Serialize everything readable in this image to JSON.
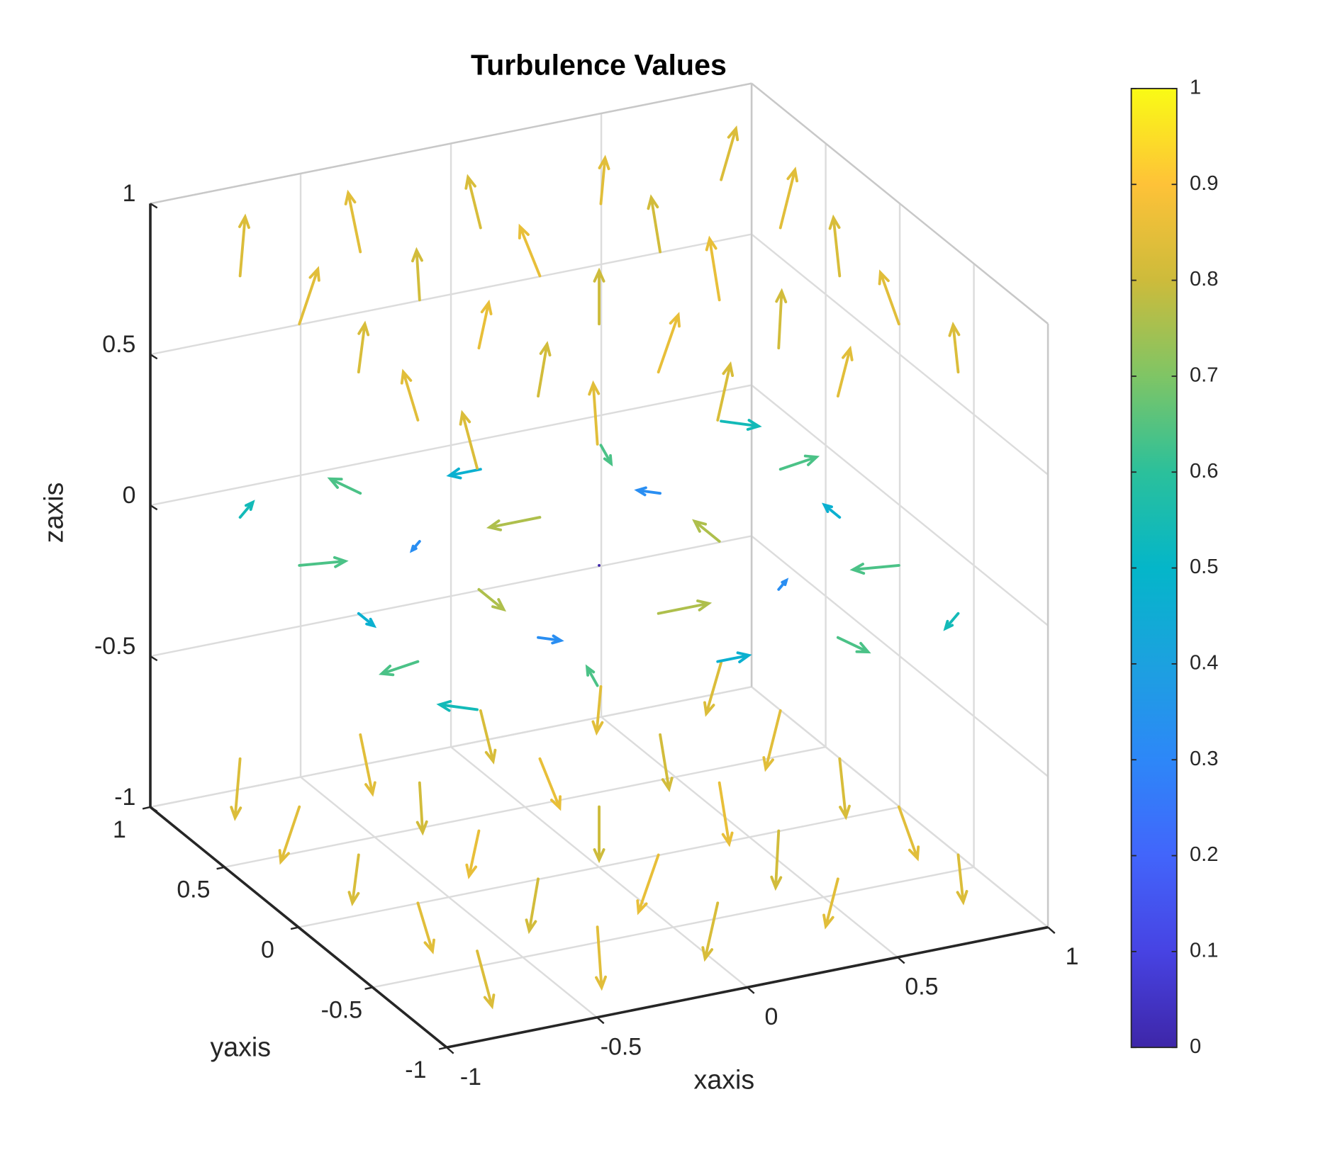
{
  "chart_data": {
    "type": "quiver3",
    "title": "Turbulence Values",
    "xlabel": "xaxis",
    "ylabel": "yaxis",
    "zlabel": "zaxis",
    "xlim": [
      -1,
      1
    ],
    "ylim": [
      -1,
      1
    ],
    "zlim": [
      -1,
      1
    ],
    "xticks": [
      -1,
      -0.5,
      0,
      0.5,
      1
    ],
    "yticks": [
      -1,
      -0.5,
      0,
      0.5,
      1
    ],
    "zticks": [
      -1,
      -0.5,
      0,
      0.5,
      1
    ],
    "grid": true,
    "clim": [
      0,
      1
    ],
    "cticks": [
      0,
      0.1,
      0.2,
      0.3,
      0.4,
      0.5,
      0.6,
      0.7,
      0.8,
      0.9,
      1
    ],
    "colormap": [
      "#3e26a8",
      "#4743e3",
      "#4265fb",
      "#2d87f8",
      "#1ca1df",
      "#04b6c9",
      "#2bc09b",
      "#7fc565",
      "#cdbb3b",
      "#fec238",
      "#f9fb15"
    ],
    "x": [
      -0.8,
      -0.8,
      -0.8,
      -0.8,
      -0.8,
      -0.4,
      -0.4,
      -0.4,
      -0.4,
      -0.4,
      0,
      0,
      0,
      0,
      0,
      0.4,
      0.4,
      0.4,
      0.4,
      0.4,
      0.8,
      0.8,
      0.8,
      0.8,
      0.8,
      -0.8,
      -0.8,
      -0.8,
      -0.8,
      -0.8,
      -0.4,
      -0.4,
      -0.4,
      -0.4,
      -0.4,
      0,
      0,
      0,
      0,
      0,
      0.4,
      0.4,
      0.4,
      0.4,
      0.4,
      0.8,
      0.8,
      0.8,
      0.8,
      0.8,
      -0.8,
      -0.8,
      -0.8,
      -0.8,
      -0.8,
      -0.4,
      -0.4,
      -0.4,
      -0.4,
      -0.4,
      0,
      0,
      0,
      0,
      0,
      0.4,
      0.4,
      0.4,
      0.4,
      0.4,
      0.8,
      0.8,
      0.8,
      0.8,
      0.8
    ],
    "y": [
      -0.8,
      -0.4,
      0,
      0.4,
      0.8,
      -0.8,
      -0.4,
      0,
      0.4,
      0.8,
      -0.8,
      -0.4,
      0,
      0.4,
      0.8,
      -0.8,
      -0.4,
      0,
      0.4,
      0.8,
      -0.8,
      -0.4,
      0,
      0.4,
      0.8,
      -0.8,
      -0.4,
      0,
      0.4,
      0.8,
      -0.8,
      -0.4,
      0,
      0.4,
      0.8,
      -0.8,
      -0.4,
      0,
      0.4,
      0.8,
      -0.8,
      -0.4,
      0,
      0.4,
      0.8,
      -0.8,
      -0.4,
      0,
      0.4,
      0.8,
      -0.8,
      -0.4,
      0,
      0.4,
      0.8,
      -0.8,
      -0.4,
      0,
      0.4,
      0.8,
      -0.8,
      -0.4,
      0,
      0.4,
      0.8,
      -0.8,
      -0.4,
      0,
      0.4,
      0.8,
      -0.8,
      -0.4,
      0,
      0.4,
      0.8
    ],
    "z": [
      -0.8,
      -0.8,
      -0.8,
      -0.8,
      -0.8,
      -0.8,
      -0.8,
      -0.8,
      -0.8,
      -0.8,
      -0.8,
      -0.8,
      -0.8,
      -0.8,
      -0.8,
      -0.8,
      -0.8,
      -0.8,
      -0.8,
      -0.8,
      -0.8,
      -0.8,
      -0.8,
      -0.8,
      -0.8,
      0,
      0,
      0,
      0,
      0,
      0,
      0,
      0,
      0,
      0,
      0,
      0,
      0,
      0,
      0,
      0,
      0,
      0,
      0,
      0,
      0,
      0,
      0,
      0,
      0,
      0.8,
      0.8,
      0.8,
      0.8,
      0.8,
      0.8,
      0.8,
      0.8,
      0.8,
      0.8,
      0.8,
      0.8,
      0.8,
      0.8,
      0.8,
      0.8,
      0.8,
      0.8,
      0.8,
      0.8,
      0.8,
      0.8,
      0.8,
      0.8,
      0.8
    ],
    "u": [
      0.15,
      0.25,
      0,
      -0.25,
      -0.15,
      -0.06,
      -0.09,
      0,
      0.09,
      0.06,
      -0.19,
      -0.3,
      0,
      0.3,
      0.19,
      -0.06,
      -0.09,
      0,
      0.09,
      0.06,
      0.15,
      0.25,
      0,
      -0.25,
      -0.15,
      -0.38,
      -0.62,
      0,
      0.62,
      0.38,
      0.15,
      0.23,
      0,
      -0.23,
      -0.15,
      0.47,
      0.76,
      0,
      -0.76,
      -0.47,
      0.15,
      0.23,
      0,
      -0.23,
      -0.15,
      -0.38,
      -0.62,
      0,
      0.62,
      0.38,
      -0.15,
      -0.25,
      0,
      0.25,
      0.15,
      0.06,
      0.09,
      0,
      -0.09,
      -0.06,
      0.19,
      0.3,
      0,
      -0.3,
      -0.19,
      0.06,
      0.09,
      0,
      -0.09,
      -0.06,
      -0.15,
      -0.25,
      0,
      0.25,
      0.15
    ],
    "v": [
      -0.15,
      0.06,
      0.19,
      0.06,
      -0.15,
      -0.25,
      0.09,
      0.3,
      0.09,
      -0.25,
      0,
      0,
      0,
      0,
      0,
      0.25,
      -0.09,
      -0.3,
      -0.09,
      0.25,
      0.15,
      -0.06,
      -0.19,
      -0.06,
      0.15,
      0.38,
      -0.15,
      -0.47,
      -0.15,
      0.38,
      0.62,
      -0.23,
      -0.76,
      -0.23,
      0.62,
      0,
      0,
      0,
      0,
      0,
      -0.62,
      0.23,
      0.76,
      0.23,
      -0.62,
      -0.38,
      0.15,
      0.47,
      0.15,
      -0.38,
      0.15,
      -0.06,
      -0.19,
      -0.06,
      0.15,
      0.25,
      -0.09,
      -0.3,
      -0.09,
      0.25,
      0,
      0,
      0,
      0,
      0,
      -0.25,
      0.09,
      0.3,
      0.09,
      -0.25,
      -0.15,
      0.06,
      0.19,
      0.06,
      -0.15
    ],
    "w": [
      -0.8,
      -0.8,
      -0.8,
      -0.8,
      -0.8,
      -0.8,
      -0.8,
      -0.8,
      -0.8,
      -0.8,
      -0.8,
      -0.8,
      -0.8,
      -0.8,
      -0.8,
      -0.8,
      -0.8,
      -0.8,
      -0.8,
      -0.8,
      -0.8,
      -0.8,
      -0.8,
      -0.8,
      -0.8,
      0,
      0,
      0,
      0,
      0,
      0,
      0,
      0,
      0,
      0,
      0,
      0,
      0,
      0,
      0,
      0,
      0,
      0,
      0,
      0,
      0,
      0,
      0,
      0,
      0,
      0.8,
      0.8,
      0.8,
      0.8,
      0.8,
      0.8,
      0.8,
      0.8,
      0.8,
      0.8,
      0.8,
      0.8,
      0.8,
      0.8,
      0.8,
      0.8,
      0.8,
      0.8,
      0.8,
      0.8,
      0.8,
      0.8,
      0.8,
      0.8,
      0.8
    ]
  }
}
